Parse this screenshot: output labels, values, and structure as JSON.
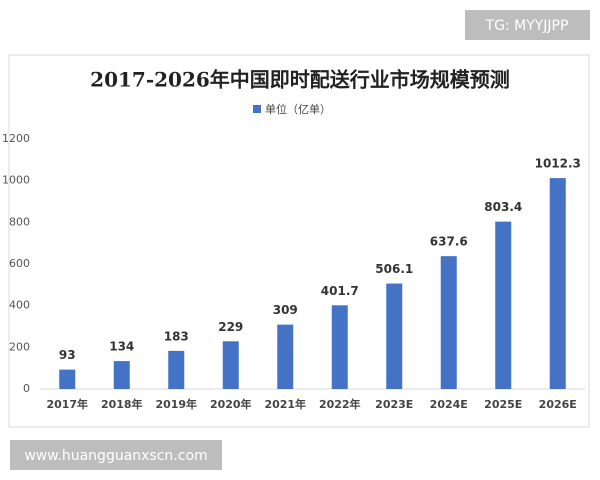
{
  "watermarks": {
    "top": "TG: MYYJJPP",
    "bottom": "www.huangguanxscn.com"
  },
  "chart_data": {
    "type": "bar",
    "title": "2017-2026年中国即时配送行业市场规模预测",
    "legend": "单位（亿单）",
    "color": "#4472c4",
    "categories": [
      "2017年",
      "2018年",
      "2019年",
      "2020年",
      "2021年",
      "2022年",
      "2023E",
      "2024E",
      "2025E",
      "2026E"
    ],
    "values": [
      93,
      134,
      183,
      229,
      309,
      401.7,
      506.1,
      637.6,
      803.4,
      1012.3
    ],
    "ylim": [
      0,
      1200
    ],
    "yticks": [
      0,
      200,
      400,
      600,
      800,
      1000,
      1200
    ],
    "grid": false
  }
}
